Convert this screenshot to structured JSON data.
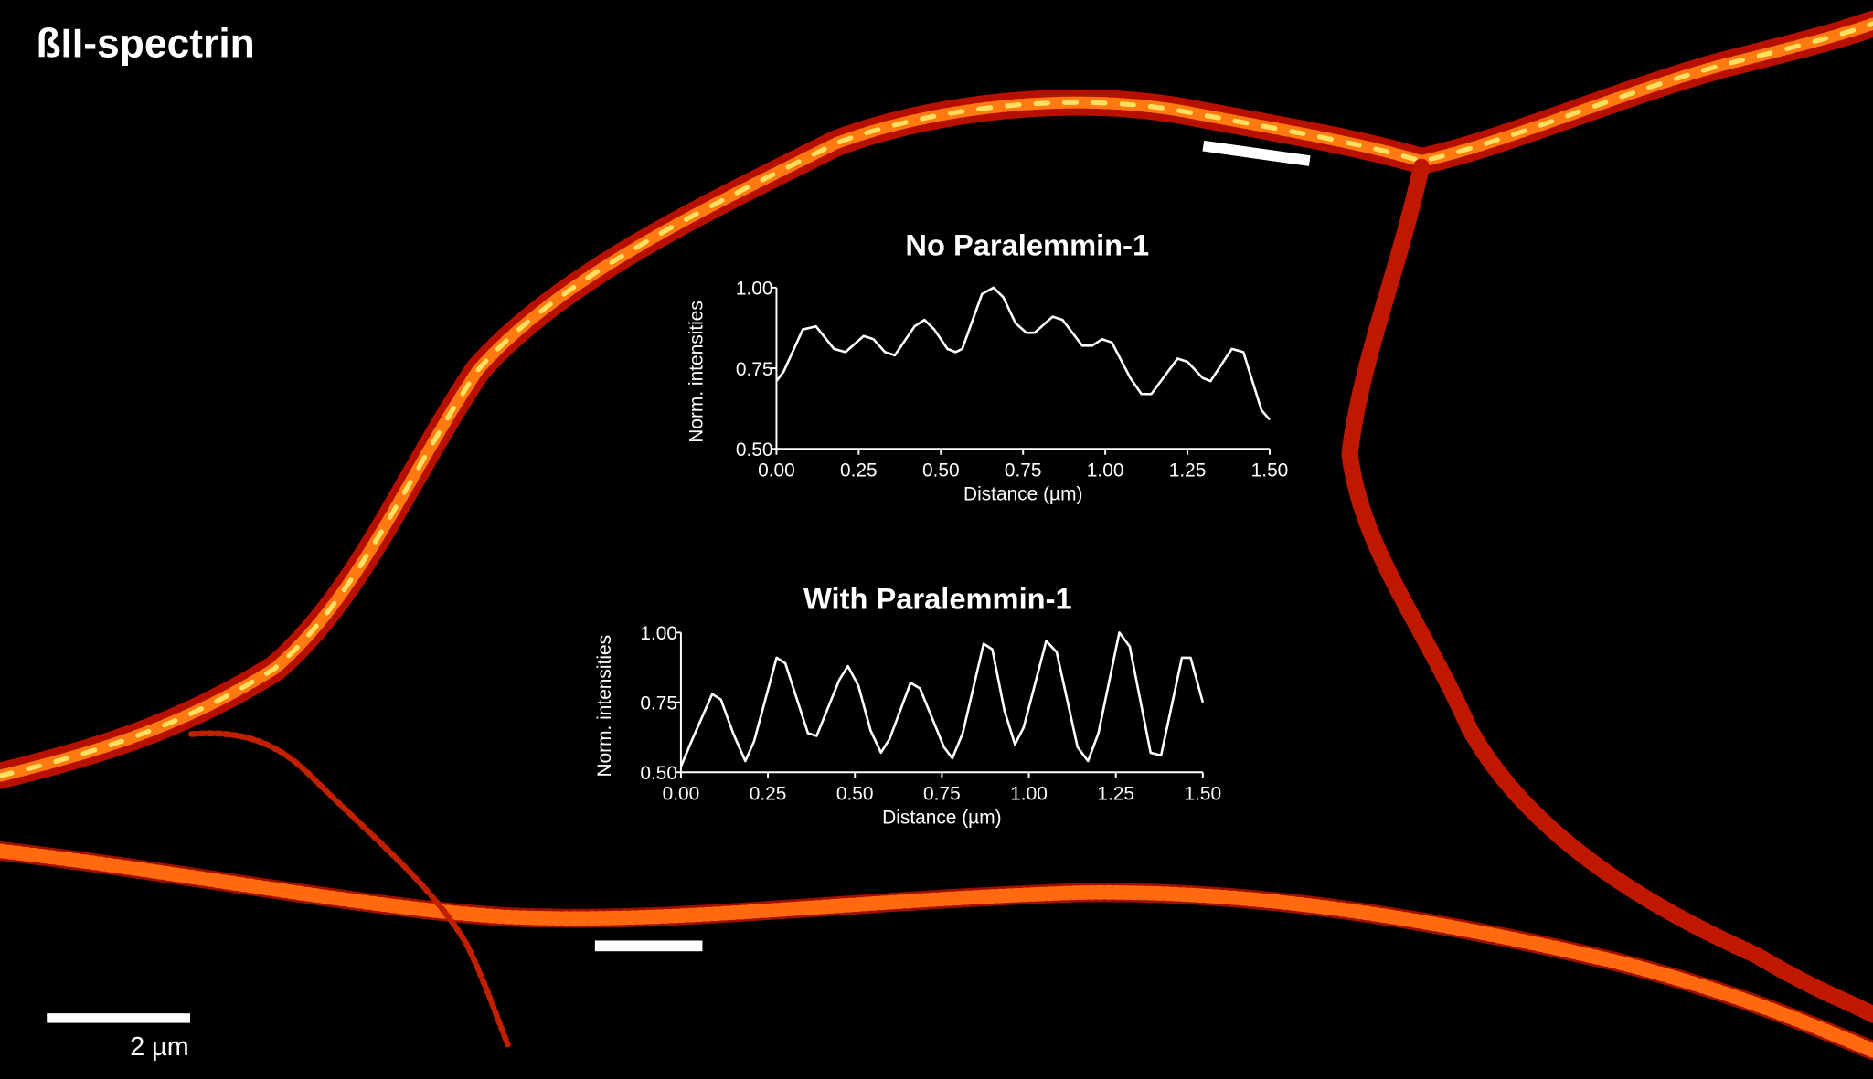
{
  "image": {
    "label": "ßII-spectrin",
    "scale_bar": "2 µm"
  },
  "chart_data": [
    {
      "type": "line",
      "title": "No Paralemmin-1",
      "xlabel": "Distance (µm)",
      "ylabel": "Norm. intensities",
      "color": "#ffffff",
      "x": [
        0,
        0.022,
        0.08,
        0.12,
        0.175,
        0.21,
        0.265,
        0.295,
        0.33,
        0.36,
        0.42,
        0.45,
        0.48,
        0.52,
        0.545,
        0.565,
        0.625,
        0.66,
        0.69,
        0.727,
        0.76,
        0.785,
        0.84,
        0.87,
        0.93,
        0.96,
        0.99,
        1.02,
        1.076,
        1.11,
        1.14,
        1.22,
        1.25,
        1.296,
        1.32,
        1.385,
        1.42,
        1.475,
        1.5
      ],
      "values": [
        0.71,
        0.74,
        0.87,
        0.88,
        0.81,
        0.8,
        0.85,
        0.84,
        0.8,
        0.79,
        0.88,
        0.9,
        0.87,
        0.81,
        0.8,
        0.81,
        0.98,
        1.0,
        0.97,
        0.89,
        0.86,
        0.86,
        0.91,
        0.9,
        0.82,
        0.82,
        0.84,
        0.83,
        0.72,
        0.67,
        0.67,
        0.78,
        0.77,
        0.72,
        0.71,
        0.81,
        0.8,
        0.62,
        0.59
      ],
      "xlim": [
        0,
        1.5
      ],
      "ylim": [
        0.5,
        1.0
      ],
      "xticks": [
        {
          "value": 0,
          "label": "0.00"
        },
        {
          "value": 0.25,
          "label": "0.25"
        },
        {
          "value": 0.5,
          "label": "0.50"
        },
        {
          "value": 0.75,
          "label": "0.75"
        },
        {
          "value": 1,
          "label": "1.00"
        },
        {
          "value": 1.25,
          "label": "1.25"
        },
        {
          "value": 1.5,
          "label": "1.50"
        }
      ],
      "yticks": [
        {
          "value": 0.5,
          "label": "0.50"
        },
        {
          "value": 0.75,
          "label": "0.75"
        },
        {
          "value": 1,
          "label": "1.00"
        }
      ]
    },
    {
      "type": "line",
      "title": "With Paralemmin-1",
      "xlabel": "Distance (µm)",
      "ylabel": "Norm. intensities",
      "color": "#ffffff",
      "x": [
        0,
        0.03,
        0.09,
        0.115,
        0.15,
        0.185,
        0.21,
        0.275,
        0.3,
        0.365,
        0.39,
        0.455,
        0.48,
        0.51,
        0.545,
        0.575,
        0.6,
        0.66,
        0.687,
        0.756,
        0.78,
        0.81,
        0.87,
        0.895,
        0.93,
        0.96,
        0.985,
        1.05,
        1.08,
        1.14,
        1.17,
        1.2,
        1.26,
        1.29,
        1.35,
        1.38,
        1.44,
        1.465,
        1.5
      ],
      "values": [
        0.52,
        0.61,
        0.78,
        0.76,
        0.64,
        0.54,
        0.61,
        0.91,
        0.89,
        0.64,
        0.63,
        0.83,
        0.88,
        0.81,
        0.65,
        0.57,
        0.62,
        0.82,
        0.8,
        0.59,
        0.55,
        0.64,
        0.96,
        0.94,
        0.72,
        0.6,
        0.66,
        0.97,
        0.93,
        0.59,
        0.54,
        0.64,
        1.0,
        0.95,
        0.57,
        0.56,
        0.91,
        0.91,
        0.75
      ],
      "xlim": [
        0,
        1.5
      ],
      "ylim": [
        0.5,
        1.0
      ],
      "xticks": [
        {
          "value": 0,
          "label": "0.00"
        },
        {
          "value": 0.25,
          "label": "0.25"
        },
        {
          "value": 0.5,
          "label": "0.50"
        },
        {
          "value": 0.75,
          "label": "0.75"
        },
        {
          "value": 1,
          "label": "1.00"
        },
        {
          "value": 1.25,
          "label": "1.25"
        },
        {
          "value": 1.5,
          "label": "1.50"
        }
      ],
      "yticks": [
        {
          "value": 0.5,
          "label": "0.50"
        },
        {
          "value": 0.75,
          "label": "0.75"
        },
        {
          "value": 1,
          "label": "1.00"
        }
      ]
    }
  ]
}
